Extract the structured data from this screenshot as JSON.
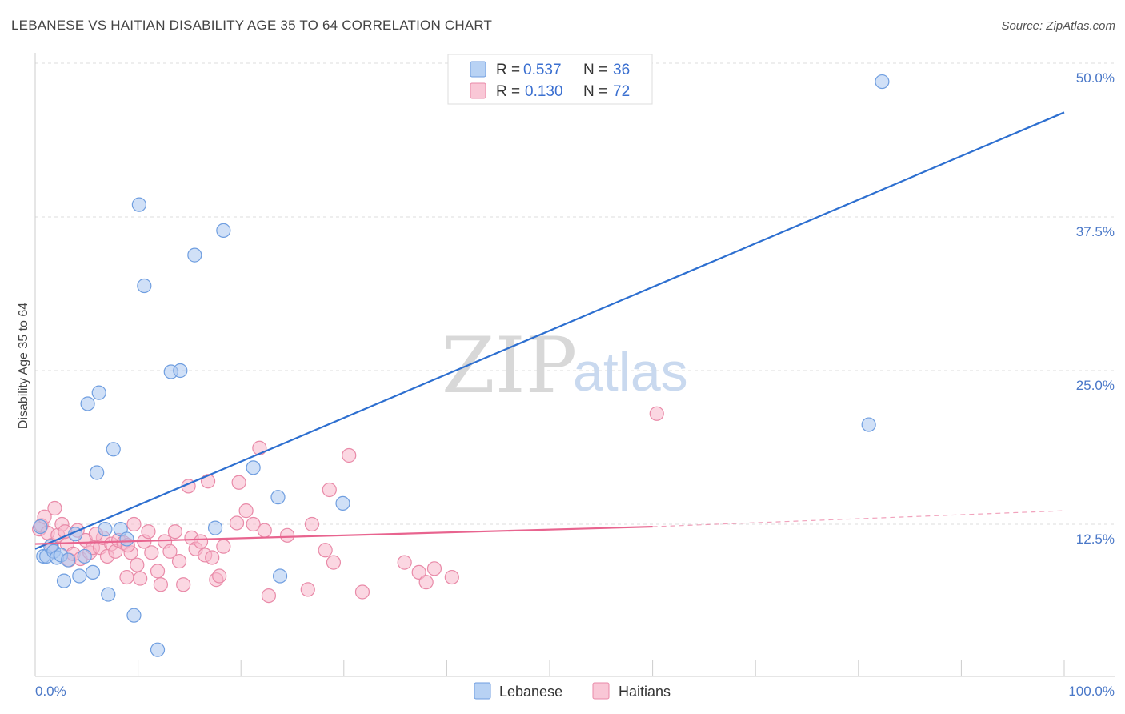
{
  "title": "LEBANESE VS HAITIAN DISABILITY AGE 35 TO 64 CORRELATION CHART",
  "source": "Source: ZipAtlas.com",
  "watermark": {
    "part1": "ZIP",
    "part2": "atlas"
  },
  "legend": {
    "rows": [
      {
        "r_label": "R =",
        "r_value": "0.537",
        "n_label": "N =",
        "n_value": "36"
      },
      {
        "r_label": "R =",
        "r_value": "0.130",
        "n_label": "N =",
        "n_value": "72"
      }
    ]
  },
  "bottom_legend": [
    "Lebanese",
    "Haitians"
  ],
  "colors": {
    "lebanese_fill": "#a9c7f0",
    "lebanese_stroke": "#6f9ee0",
    "lebanese_line": "#2d6fd0",
    "haitian_fill": "#f7b7cb",
    "haitian_stroke": "#e98aa8",
    "haitian_line": "#e8648f",
    "tick_text": "#4a78c8",
    "grid": "#dddddd"
  },
  "chart_data": {
    "type": "scatter",
    "title": "LEBANESE VS HAITIAN DISABILITY AGE 35 TO 64 CORRELATION CHART",
    "xlabel": "",
    "ylabel": "Disability Age 35 to 64",
    "xlim": [
      0,
      100
    ],
    "ylim": [
      0,
      52
    ],
    "x_tick_labels": [
      "0.0%",
      "100.0%"
    ],
    "y_ticks": [
      12.5,
      25.0,
      37.5,
      50.0
    ],
    "y_tick_labels": [
      "12.5%",
      "25.0%",
      "37.5%",
      "50.0%"
    ],
    "series": [
      {
        "name": "Lebanese",
        "r": 0.537,
        "n": 36,
        "trend": {
          "x0": 0,
          "y0": 10.5,
          "x1": 100,
          "y1": 46.0
        },
        "points": [
          [
            0.5,
            12.3
          ],
          [
            0.8,
            9.9
          ],
          [
            1.1,
            9.9
          ],
          [
            1.5,
            10.7
          ],
          [
            1.8,
            10.3
          ],
          [
            2.1,
            9.8
          ],
          [
            2.5,
            10.0
          ],
          [
            2.8,
            7.9
          ],
          [
            3.2,
            9.6
          ],
          [
            3.9,
            11.7
          ],
          [
            4.3,
            8.3
          ],
          [
            4.8,
            9.9
          ],
          [
            5.1,
            22.3
          ],
          [
            5.6,
            8.6
          ],
          [
            6.0,
            16.7
          ],
          [
            6.2,
            23.2
          ],
          [
            6.8,
            12.1
          ],
          [
            7.1,
            6.8
          ],
          [
            7.6,
            18.6
          ],
          [
            8.3,
            12.1
          ],
          [
            8.9,
            11.3
          ],
          [
            9.6,
            5.1
          ],
          [
            10.1,
            38.5
          ],
          [
            10.6,
            31.9
          ],
          [
            11.9,
            2.3
          ],
          [
            13.2,
            24.9
          ],
          [
            14.1,
            25.0
          ],
          [
            15.5,
            34.4
          ],
          [
            17.5,
            12.2
          ],
          [
            18.3,
            36.4
          ],
          [
            21.2,
            17.1
          ],
          [
            23.6,
            14.7
          ],
          [
            23.8,
            8.3
          ],
          [
            29.9,
            14.2
          ],
          [
            81.0,
            20.6
          ],
          [
            82.3,
            48.5
          ]
        ]
      },
      {
        "name": "Haitians",
        "r": 0.13,
        "n": 72,
        "trend": {
          "x0": 0,
          "y0": 10.9,
          "x1": 60,
          "y1": 12.3
        },
        "trend_dashed": {
          "x0": 60,
          "y0": 12.3,
          "x1": 100,
          "y1": 13.6
        },
        "points": [
          [
            0.4,
            12.1
          ],
          [
            0.6,
            12.4
          ],
          [
            0.9,
            13.1
          ],
          [
            1.2,
            11.8
          ],
          [
            1.6,
            10.8
          ],
          [
            1.9,
            13.8
          ],
          [
            2.2,
            11.6
          ],
          [
            2.6,
            12.5
          ],
          [
            3.1,
            10.9
          ],
          [
            3.3,
            9.6
          ],
          [
            3.7,
            10.1
          ],
          [
            4.1,
            12.0
          ],
          [
            4.4,
            9.7
          ],
          [
            4.9,
            11.2
          ],
          [
            5.3,
            10.2
          ],
          [
            5.6,
            10.6
          ],
          [
            6.3,
            10.6
          ],
          [
            6.6,
            11.4
          ],
          [
            7.0,
            9.9
          ],
          [
            7.4,
            10.9
          ],
          [
            7.8,
            10.3
          ],
          [
            8.1,
            11.2
          ],
          [
            8.6,
            11.0
          ],
          [
            8.9,
            8.2
          ],
          [
            9.3,
            10.2
          ],
          [
            9.6,
            12.5
          ],
          [
            9.9,
            9.2
          ],
          [
            10.2,
            8.1
          ],
          [
            10.6,
            11.1
          ],
          [
            11.0,
            11.9
          ],
          [
            11.3,
            10.2
          ],
          [
            11.9,
            8.7
          ],
          [
            12.2,
            7.6
          ],
          [
            12.6,
            11.1
          ],
          [
            13.1,
            10.3
          ],
          [
            13.6,
            11.9
          ],
          [
            14.0,
            9.5
          ],
          [
            14.4,
            7.6
          ],
          [
            14.9,
            15.6
          ],
          [
            15.2,
            11.4
          ],
          [
            15.6,
            10.5
          ],
          [
            16.1,
            11.1
          ],
          [
            16.5,
            10.0
          ],
          [
            16.8,
            16.0
          ],
          [
            17.2,
            9.8
          ],
          [
            17.6,
            8.0
          ],
          [
            17.9,
            8.3
          ],
          [
            18.3,
            10.7
          ],
          [
            19.6,
            12.6
          ],
          [
            19.8,
            15.9
          ],
          [
            20.5,
            13.6
          ],
          [
            21.2,
            12.5
          ],
          [
            21.8,
            18.7
          ],
          [
            22.3,
            12.0
          ],
          [
            22.7,
            6.7
          ],
          [
            26.5,
            7.2
          ],
          [
            26.9,
            12.5
          ],
          [
            28.2,
            10.4
          ],
          [
            28.6,
            15.3
          ],
          [
            29.0,
            9.4
          ],
          [
            30.5,
            18.1
          ],
          [
            31.8,
            7.0
          ],
          [
            35.9,
            9.4
          ],
          [
            37.3,
            8.6
          ],
          [
            38.0,
            7.8
          ],
          [
            38.8,
            8.9
          ],
          [
            40.5,
            8.2
          ],
          [
            60.4,
            21.5
          ],
          [
            2.9,
            11.9
          ],
          [
            5.9,
            11.7
          ],
          [
            9.0,
            10.8
          ],
          [
            24.5,
            11.6
          ]
        ]
      }
    ]
  }
}
